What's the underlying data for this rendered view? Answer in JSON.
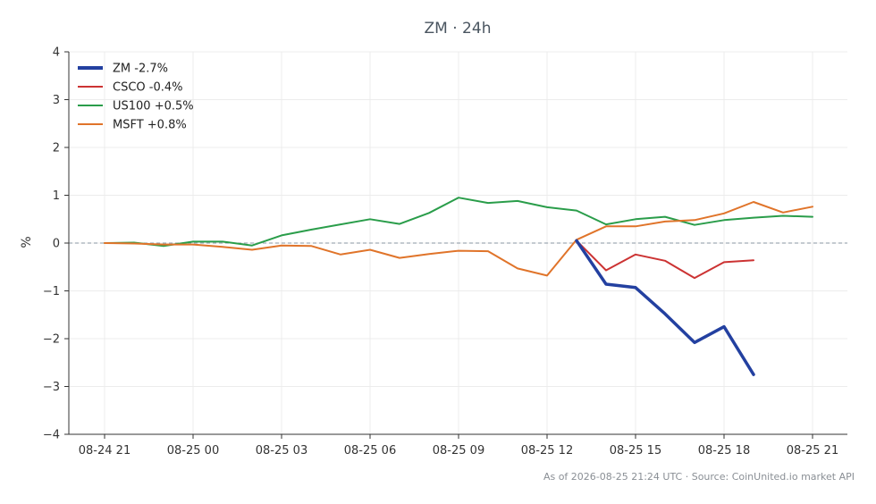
{
  "chart_data": {
    "type": "line",
    "title": "ZM · 24h",
    "ylabel": "%",
    "xlabel": "",
    "ylim": [
      -4,
      4
    ],
    "yticks": [
      -4,
      -3,
      -2,
      -1,
      0,
      1,
      2,
      3,
      4
    ],
    "ytick_labels": [
      "−4",
      "−3",
      "−2",
      "−1",
      "0",
      "1",
      "2",
      "3",
      "4"
    ],
    "xlim": [
      0,
      25.2
    ],
    "xticks": [
      0,
      3,
      6,
      9,
      12,
      15,
      18,
      21,
      24
    ],
    "xtick_labels": [
      "08-24 21",
      "08-25 00",
      "08-25 03",
      "08-25 06",
      "08-25 09",
      "08-25 12",
      "08-25 15",
      "08-25 18",
      "08-25 21"
    ],
    "grid": true,
    "zero_line": true,
    "legend_position": "top-left",
    "series": [
      {
        "name": "ZM -2.7%",
        "color": "#2340a0",
        "x": [
          16,
          17,
          18,
          19,
          20,
          21,
          22
        ],
        "y": [
          0.05,
          -0.86,
          -0.93,
          -1.48,
          -2.08,
          -1.75,
          -2.75
        ]
      },
      {
        "name": "CSCO -0.4%",
        "color": "#cc3333",
        "x": [
          16,
          17,
          18,
          19,
          20,
          21,
          22
        ],
        "y": [
          0.05,
          -0.57,
          -0.24,
          -0.37,
          -0.73,
          -0.4,
          -0.36
        ]
      },
      {
        "name": "US100 +0.5%",
        "color": "#2a9d4a",
        "x": [
          0,
          1,
          2,
          3,
          4,
          5,
          6,
          7,
          8,
          9,
          10,
          11,
          12,
          13,
          14,
          15,
          16,
          17,
          18,
          19,
          20,
          21,
          22,
          23,
          24
        ],
        "y": [
          0.0,
          0.01,
          -0.06,
          0.03,
          0.03,
          -0.05,
          0.16,
          0.28,
          0.39,
          0.5,
          0.4,
          0.63,
          0.95,
          0.84,
          0.88,
          0.75,
          0.68,
          0.39,
          0.5,
          0.55,
          0.38,
          0.48,
          0.53,
          0.57,
          0.55
        ]
      },
      {
        "name": "MSFT +0.8%",
        "color": "#e0742a",
        "x": [
          0,
          1,
          2,
          3,
          4,
          5,
          6,
          7,
          8,
          9,
          10,
          11,
          12,
          13,
          14,
          15,
          16,
          17,
          18,
          19,
          20,
          21,
          22,
          23,
          24
        ],
        "y": [
          0.0,
          -0.01,
          -0.03,
          -0.03,
          -0.08,
          -0.14,
          -0.05,
          -0.06,
          -0.24,
          -0.14,
          -0.31,
          -0.23,
          -0.16,
          -0.17,
          -0.53,
          -0.68,
          0.07,
          0.35,
          0.35,
          0.45,
          0.48,
          0.62,
          0.86,
          0.64,
          0.76
        ]
      }
    ]
  },
  "footer": "As of 2026-08-25 21:24 UTC · Source: CoinUnited.io market API"
}
